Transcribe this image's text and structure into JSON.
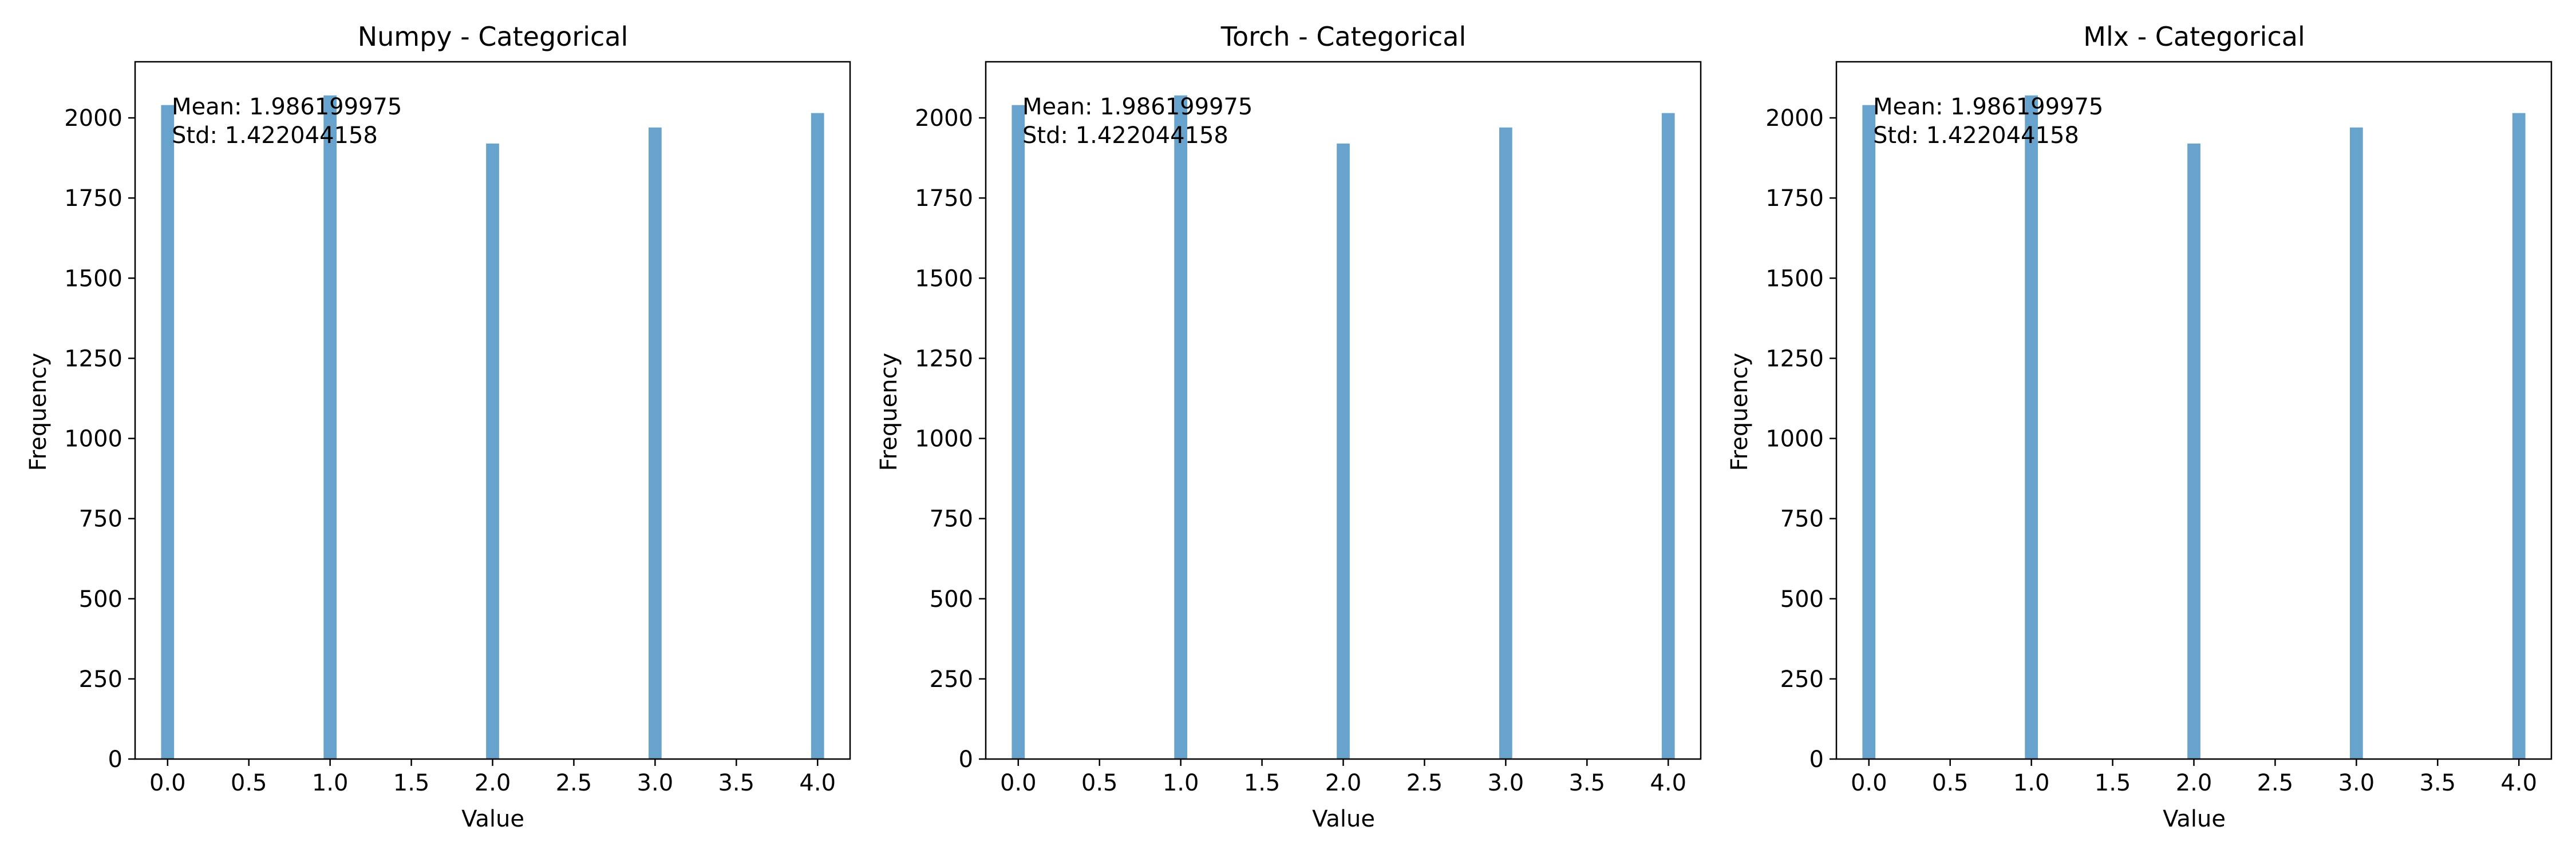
{
  "chart_data": [
    {
      "type": "bar",
      "title": "Numpy - Categorical",
      "xlabel": "Value",
      "ylabel": "Frequency",
      "xlim": [
        -0.2,
        4.2
      ],
      "ylim": [
        0,
        2175
      ],
      "x_ticks": [
        0.0,
        0.5,
        1.0,
        1.5,
        2.0,
        2.5,
        3.0,
        3.5,
        4.0
      ],
      "x_tick_labels": [
        "0.0",
        "0.5",
        "1.0",
        "1.5",
        "2.0",
        "2.5",
        "3.0",
        "3.5",
        "4.0"
      ],
      "y_ticks": [
        0,
        250,
        500,
        750,
        1000,
        1250,
        1500,
        1750,
        2000
      ],
      "y_tick_labels": [
        "0",
        "250",
        "500",
        "750",
        "1000",
        "1250",
        "1500",
        "1750",
        "2000"
      ],
      "grid": false,
      "bar_width": 0.08,
      "color": "#5b9bc9",
      "categories": [
        0,
        1,
        2,
        3,
        4
      ],
      "values": [
        2040,
        2070,
        1920,
        1970,
        2015
      ],
      "annotations": [
        "Mean: 1.986199975",
        "Std: 1.422044158"
      ]
    },
    {
      "type": "bar",
      "title": "Torch - Categorical",
      "xlabel": "Value",
      "ylabel": "Frequency",
      "xlim": [
        -0.2,
        4.2
      ],
      "ylim": [
        0,
        2175
      ],
      "x_ticks": [
        0.0,
        0.5,
        1.0,
        1.5,
        2.0,
        2.5,
        3.0,
        3.5,
        4.0
      ],
      "x_tick_labels": [
        "0.0",
        "0.5",
        "1.0",
        "1.5",
        "2.0",
        "2.5",
        "3.0",
        "3.5",
        "4.0"
      ],
      "y_ticks": [
        0,
        250,
        500,
        750,
        1000,
        1250,
        1500,
        1750,
        2000
      ],
      "y_tick_labels": [
        "0",
        "250",
        "500",
        "750",
        "1000",
        "1250",
        "1500",
        "1750",
        "2000"
      ],
      "grid": false,
      "bar_width": 0.08,
      "color": "#5b9bc9",
      "categories": [
        0,
        1,
        2,
        3,
        4
      ],
      "values": [
        2040,
        2070,
        1920,
        1970,
        2015
      ],
      "annotations": [
        "Mean: 1.986199975",
        "Std: 1.422044158"
      ]
    },
    {
      "type": "bar",
      "title": "Mlx - Categorical",
      "xlabel": "Value",
      "ylabel": "Frequency",
      "xlim": [
        -0.2,
        4.2
      ],
      "ylim": [
        0,
        2175
      ],
      "x_ticks": [
        0.0,
        0.5,
        1.0,
        1.5,
        2.0,
        2.5,
        3.0,
        3.5,
        4.0
      ],
      "x_tick_labels": [
        "0.0",
        "0.5",
        "1.0",
        "1.5",
        "2.0",
        "2.5",
        "3.0",
        "3.5",
        "4.0"
      ],
      "y_ticks": [
        0,
        250,
        500,
        750,
        1000,
        1250,
        1500,
        1750,
        2000
      ],
      "y_tick_labels": [
        "0",
        "250",
        "500",
        "750",
        "1000",
        "1250",
        "1500",
        "1750",
        "2000"
      ],
      "grid": false,
      "bar_width": 0.08,
      "color": "#5b9bc9",
      "categories": [
        0,
        1,
        2,
        3,
        4
      ],
      "values": [
        2040,
        2070,
        1920,
        1970,
        2015
      ],
      "annotations": [
        "Mean: 1.986199975",
        "Std: 1.422044158"
      ]
    }
  ]
}
